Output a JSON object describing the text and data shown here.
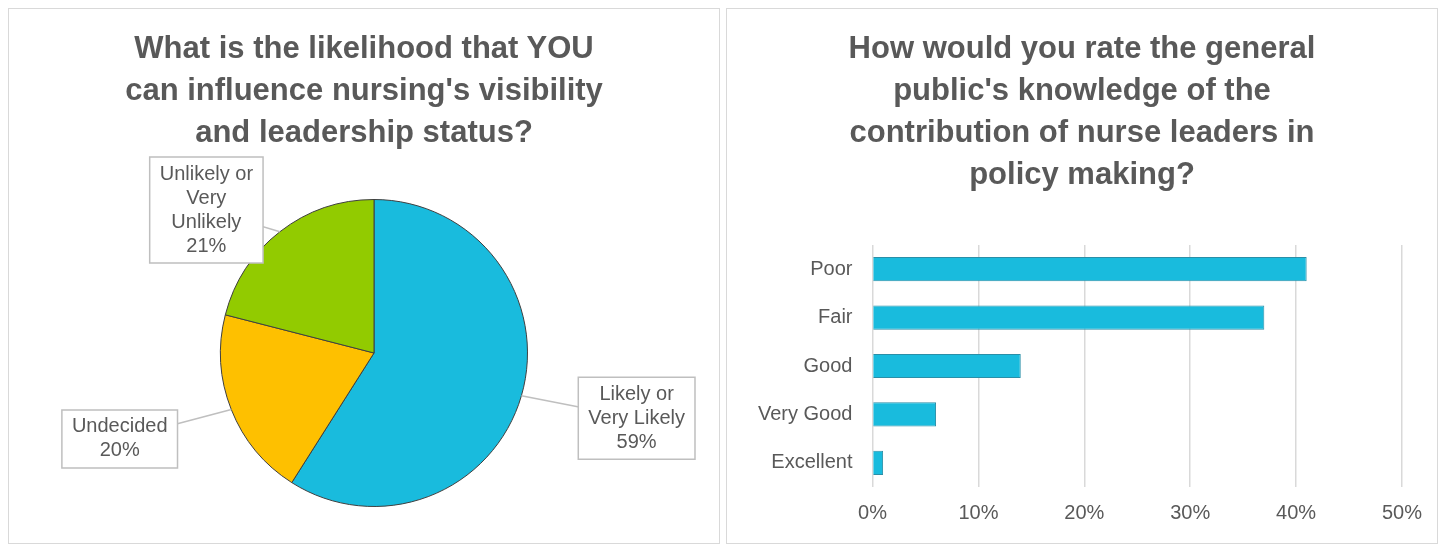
{
  "chart_data": [
    {
      "type": "pie",
      "title": "What is the likelihood that YOU can influence nursing's visibility and leadership status?",
      "categories": [
        "Likely or Very Likely",
        "Undecided",
        "Unlikely or Very Unlikely"
      ],
      "values": [
        59,
        20,
        21
      ],
      "colors": [
        "#19bbdd",
        "#fec000",
        "#92cb00"
      ],
      "value_labels": [
        "59%",
        "20%",
        "21%"
      ],
      "legend": false
    },
    {
      "type": "bar",
      "orientation": "horizontal",
      "title": "How would you rate the general public's knowledge of the contribution of nurse leaders in policy making?",
      "categories": [
        "Poor",
        "Fair",
        "Good",
        "Very Good",
        "Excellent"
      ],
      "values": [
        41,
        37,
        14,
        6,
        1
      ],
      "color": "#19bbdd",
      "xlim": [
        0,
        50
      ],
      "xticks": [
        {
          "value": 0,
          "label": "0%"
        },
        {
          "value": 10,
          "label": "10%"
        },
        {
          "value": 20,
          "label": "20%"
        },
        {
          "value": 30,
          "label": "30%"
        },
        {
          "value": 40,
          "label": "40%"
        },
        {
          "value": 50,
          "label": "50%"
        }
      ],
      "grid": "x",
      "legend": false
    }
  ]
}
